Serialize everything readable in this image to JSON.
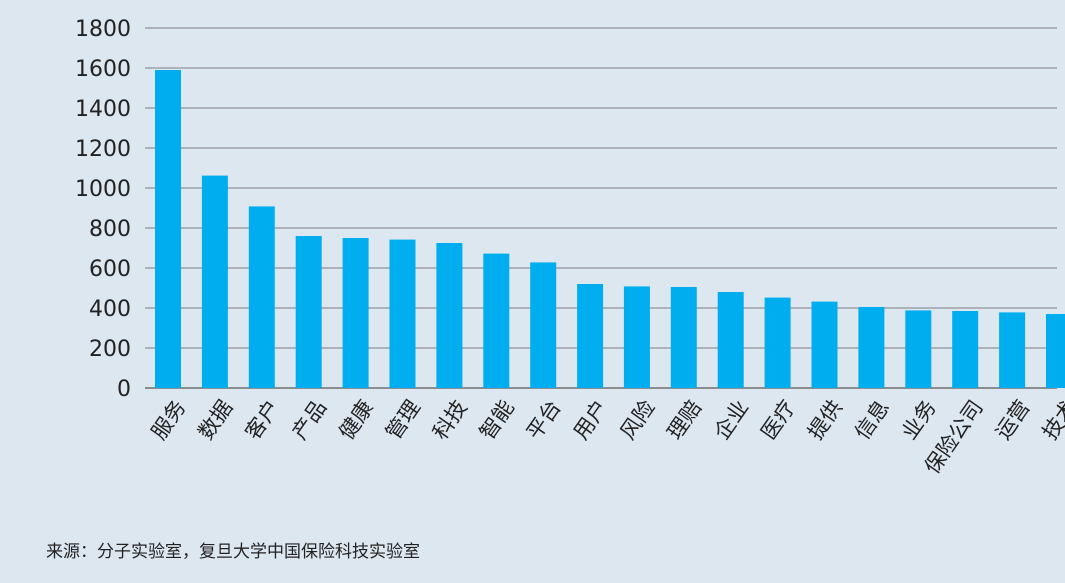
{
  "chart_data": {
    "type": "bar",
    "categories": [
      "服务",
      "数据",
      "客户",
      "产品",
      "健康",
      "管理",
      "科技",
      "智能",
      "平台",
      "用户",
      "风险",
      "理赔",
      "企业",
      "医疗",
      "提供",
      "信息",
      "业务",
      "保险公司",
      "运营",
      "技术"
    ],
    "values": [
      1590,
      1062,
      908,
      760,
      750,
      742,
      725,
      672,
      628,
      520,
      508,
      505,
      480,
      452,
      432,
      405,
      388,
      385,
      378,
      370
    ],
    "yticks": [
      0,
      200,
      400,
      600,
      800,
      1000,
      1200,
      1400,
      1600,
      1800
    ],
    "ylim": [
      0,
      1800
    ],
    "grid": true,
    "title": "",
    "xlabel": "",
    "ylabel": "",
    "bar_color": "#00aeef",
    "grid_color": "#5a5a5a"
  },
  "source_text": "来源：分子实验室，复旦大学中国保险科技实验室"
}
